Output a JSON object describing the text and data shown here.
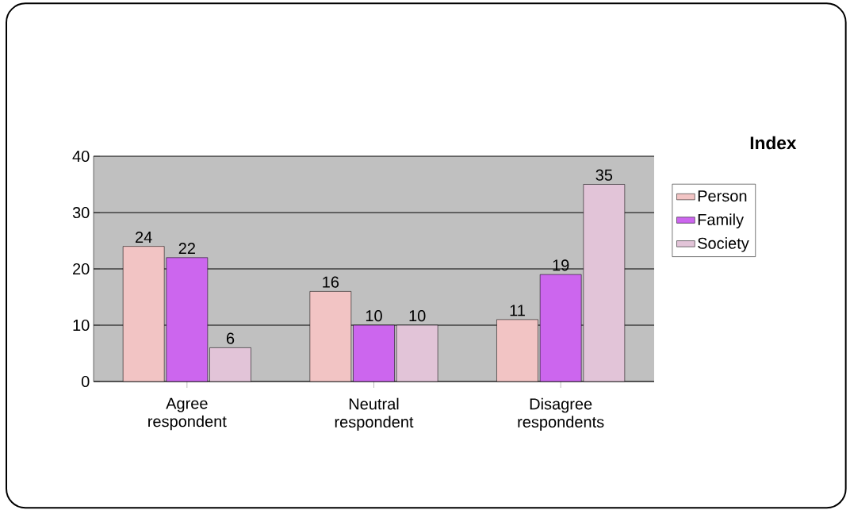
{
  "chart_data": {
    "type": "bar",
    "legend_title": "Index",
    "categories": [
      "Agree respondent",
      "Neutral respondent",
      "Disagree respondents"
    ],
    "series": [
      {
        "name": "Person",
        "color": "#f2c4c4",
        "values": [
          24,
          16,
          11
        ]
      },
      {
        "name": "Family",
        "color": "#cc66ee",
        "values": [
          22,
          10,
          19
        ]
      },
      {
        "name": "Society",
        "color": "#e2c4d8",
        "values": [
          6,
          10,
          35
        ]
      }
    ],
    "ylim": [
      0,
      40
    ],
    "yticks": [
      0,
      10,
      20,
      30,
      40
    ],
    "grid": "y",
    "legend": "right",
    "data_labels": true
  }
}
